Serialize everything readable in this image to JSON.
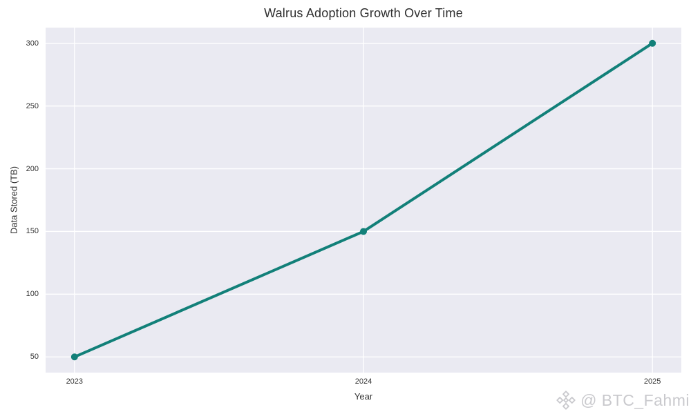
{
  "figure": {
    "title": "Walrus Adoption Growth Over Time",
    "xlabel": "Year",
    "ylabel": "Data Stored (TB)",
    "watermark_text": "@ BTC_Fahmi",
    "watermark_icon": "binance-logo-icon",
    "watermark_color": "#c9c9cd"
  },
  "chart_data": {
    "type": "line",
    "title": "Walrus Adoption Growth Over Time",
    "xlabel": "Year",
    "ylabel": "Data Stored (TB)",
    "x": [
      2023,
      2024,
      2025
    ],
    "series": [
      {
        "name": "Data Stored (TB)",
        "values": [
          50,
          150,
          300
        ]
      }
    ],
    "xticks": [
      2023,
      2024,
      2025
    ],
    "yticks": [
      50,
      100,
      150,
      200,
      250,
      300
    ],
    "xlim": [
      2022.9,
      2025.1
    ],
    "ylim": [
      37.5,
      312.5
    ],
    "grid": true,
    "legend": false,
    "style": "seaborn-darkgrid",
    "plot_bg_color": "#eaeaf2",
    "grid_color": "#ffffff",
    "line_color": "#128079",
    "marker": "circle",
    "line_width": 4,
    "marker_radius": 5
  }
}
